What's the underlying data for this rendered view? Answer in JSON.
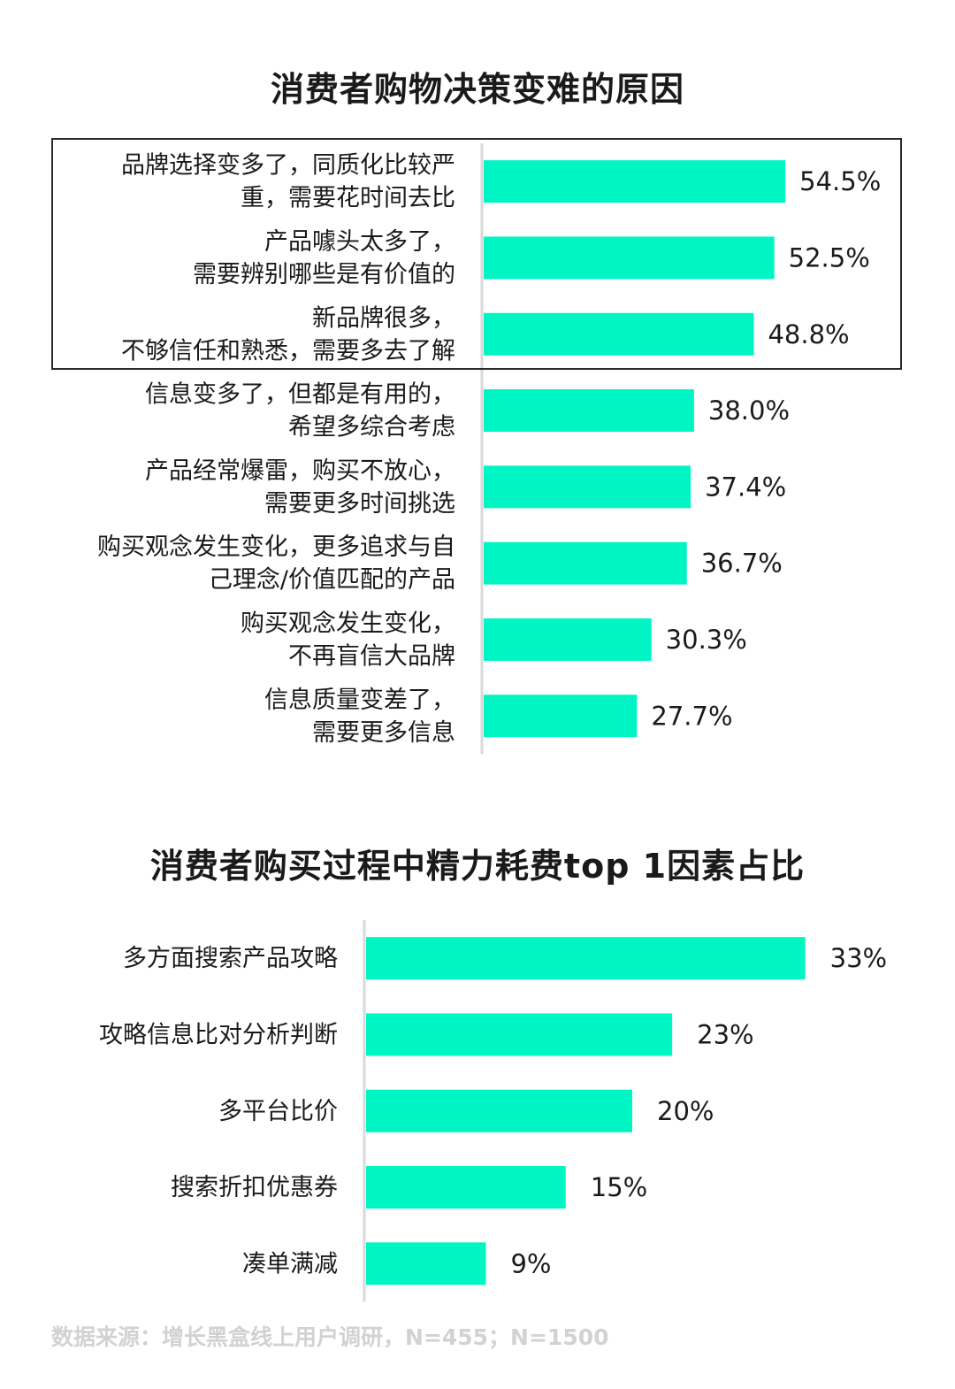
{
  "chart_data": [
    {
      "type": "bar",
      "orientation": "horizontal",
      "title": "消费者购物决策变难的原因",
      "categories": [
        [
          "品牌选择变多了，同质化比较严",
          "重，需要花时间去比"
        ],
        [
          "产品噱头太多了，",
          "需要辨别哪些是有价值的"
        ],
        [
          "新品牌很多，",
          "不够信任和熟悉，需要多去了解"
        ],
        [
          "信息变多了，但都是有用的，",
          "希望多综合考虑"
        ],
        [
          "产品经常爆雷，购买不放心，",
          "需要更多时间挑选"
        ],
        [
          "购买观念发生变化，更多追求与自",
          "己理念/价值匹配的产品"
        ],
        [
          "购买观念发生变化，",
          "不再盲信大品牌"
        ],
        [
          "信息质量变差了，",
          "需要更多信息"
        ]
      ],
      "values": [
        54.5,
        52.5,
        48.8,
        38.0,
        37.4,
        36.7,
        30.3,
        27.7
      ],
      "value_labels": [
        "54.5%",
        "52.5%",
        "48.8%",
        "38.0%",
        "37.4%",
        "36.7%",
        "30.3%",
        "27.7%"
      ],
      "highlighted_count": 3,
      "bar_color": "#00f5c4"
    },
    {
      "type": "bar",
      "orientation": "horizontal",
      "title": "消费者购买过程中精力耗费top 1因素占比",
      "categories": [
        [
          "多方面搜索产品攻略"
        ],
        [
          "攻略信息比对分析判断"
        ],
        [
          "多平台比价"
        ],
        [
          "搜索折扣优惠券"
        ],
        [
          "凑单满减"
        ]
      ],
      "values": [
        33,
        23,
        20,
        15,
        9
      ],
      "value_labels": [
        "33%",
        "23%",
        "20%",
        "15%",
        "9%"
      ],
      "bar_color": "#00f5c4"
    }
  ],
  "source": "数据来源：增长黑盒线上用户调研，N=455；N=1500"
}
